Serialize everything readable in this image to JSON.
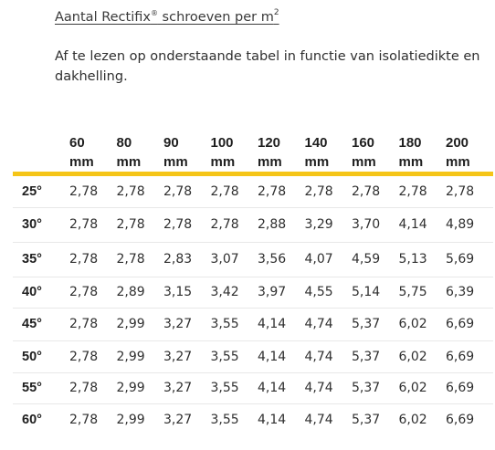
{
  "heading": {
    "prefix": "Aantal Rectifix",
    "reg": "®",
    "suffix": " schroeven per m",
    "sup": "2"
  },
  "intro": "Af te lezen op onderstaande tabel in functie van isolatiedikte en dakhelling.",
  "table": {
    "columns": [
      {
        "value": "60",
        "unit": "mm"
      },
      {
        "value": "80",
        "unit": "mm"
      },
      {
        "value": "90",
        "unit": "mm"
      },
      {
        "value": "100",
        "unit": "mm"
      },
      {
        "value": "120",
        "unit": "mm"
      },
      {
        "value": "140",
        "unit": "mm"
      },
      {
        "value": "160",
        "unit": "mm"
      },
      {
        "value": "180",
        "unit": "mm"
      },
      {
        "value": "200",
        "unit": "mm"
      }
    ],
    "rows": [
      {
        "slope": "25°",
        "values": [
          "2,78",
          "2,78",
          "2,78",
          "2,78",
          "2,78",
          "2,78",
          "2,78",
          "2,78",
          "2,78"
        ]
      },
      {
        "slope": "30°",
        "values": [
          "2,78",
          "2,78",
          "2,78",
          "2,78",
          "2,88",
          "3,29",
          "3,70",
          "4,14",
          "4,89"
        ]
      },
      {
        "slope": "35°",
        "values": [
          "2,78",
          "2,78",
          "2,83",
          "3,07",
          "3,56",
          "4,07",
          "4,59",
          "5,13",
          "5,69"
        ]
      },
      {
        "slope": "40°",
        "values": [
          "2,78",
          "2,89",
          "3,15",
          "3,42",
          "3,97",
          "4,55",
          "5,14",
          "5,75",
          "6,39"
        ]
      },
      {
        "slope": "45°",
        "values": [
          "2,78",
          "2,99",
          "3,27",
          "3,55",
          "4,14",
          "4,74",
          "5,37",
          "6,02",
          "6,69"
        ]
      },
      {
        "slope": "50°",
        "values": [
          "2,78",
          "2,99",
          "3,27",
          "3,55",
          "4,14",
          "4,74",
          "5,37",
          "6,02",
          "6,69"
        ]
      },
      {
        "slope": "55°",
        "values": [
          "2,78",
          "2,99",
          "3,27",
          "3,55",
          "4,14",
          "4,74",
          "5,37",
          "6,02",
          "6,69"
        ]
      },
      {
        "slope": "60°",
        "values": [
          "2,78",
          "2,99",
          "3,27",
          "3,55",
          "4,14",
          "4,74",
          "5,37",
          "6,02",
          "6,69"
        ]
      }
    ]
  },
  "colors": {
    "accent_bar": "#f5c518"
  }
}
